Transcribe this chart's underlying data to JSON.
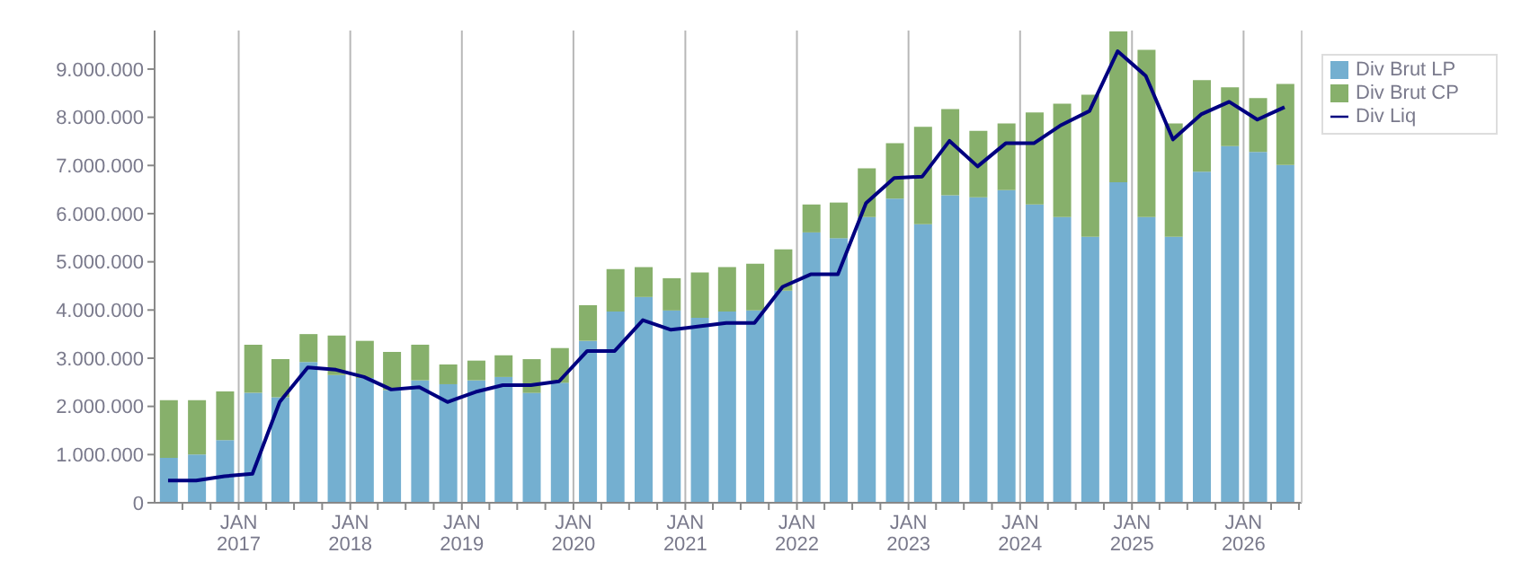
{
  "chart_data": {
    "type": "bar",
    "stacked": true,
    "x": [
      "2016-05-15",
      "2016-08-15",
      "2016-11-15",
      "2017-02-15",
      "2017-05-15",
      "2017-08-15",
      "2017-11-15",
      "2018-02-15",
      "2018-05-15",
      "2018-08-15",
      "2018-11-15",
      "2019-02-15",
      "2019-05-15",
      "2019-08-15",
      "2019-11-15",
      "2020-02-15",
      "2020-05-15",
      "2020-08-15",
      "2020-11-15",
      "2021-02-15",
      "2021-05-15",
      "2021-08-15",
      "2021-11-15",
      "2022-02-15",
      "2022-05-15",
      "2022-08-15",
      "2022-11-15",
      "2023-02-15",
      "2023-05-15",
      "2023-08-15",
      "2023-11-15",
      "2024-02-15",
      "2024-05-15",
      "2024-08-15",
      "2024-11-15",
      "2025-02-15",
      "2025-05-15",
      "2025-08-15",
      "2025-11-15",
      "2026-02-15",
      "2026-05-15"
    ],
    "series": [
      {
        "name": "Div Brut LP",
        "color": "#74afd0",
        "values": [
          930000,
          1000000,
          1300000,
          2280000,
          2190000,
          2920000,
          2650000,
          2590000,
          2340000,
          2540000,
          2460000,
          2540000,
          2610000,
          2280000,
          2490000,
          3360000,
          3970000,
          4270000,
          3990000,
          3840000,
          3970000,
          3990000,
          4400000,
          5610000,
          5490000,
          5930000,
          6310000,
          5780000,
          6380000,
          6340000,
          6490000,
          6190000,
          5930000,
          5520000,
          6650000,
          5930000,
          5520000,
          6870000,
          7400000,
          7280000,
          7010000
        ]
      },
      {
        "name": "Div Brut CP",
        "color": "#87b06b",
        "values": [
          1200000,
          1130000,
          1010000,
          1000000,
          790000,
          580000,
          820000,
          770000,
          790000,
          740000,
          410000,
          410000,
          450000,
          700000,
          720000,
          740000,
          880000,
          620000,
          670000,
          940000,
          920000,
          970000,
          860000,
          580000,
          740000,
          1010000,
          1150000,
          2020000,
          1790000,
          1380000,
          1380000,
          1910000,
          2350000,
          2950000,
          3130000,
          3470000,
          2350000,
          1900000,
          1220000,
          1120000,
          1680000
        ]
      },
      {
        "name": "Div Liq",
        "type": "line",
        "color": "#000080",
        "values": [
          460000,
          460000,
          550000,
          600000,
          2090000,
          2810000,
          2760000,
          2610000,
          2350000,
          2400000,
          2090000,
          2300000,
          2440000,
          2440000,
          2520000,
          3150000,
          3150000,
          3790000,
          3590000,
          3660000,
          3730000,
          3730000,
          4480000,
          4740000,
          4740000,
          6220000,
          6740000,
          6770000,
          7510000,
          6980000,
          7460000,
          7460000,
          7840000,
          8130000,
          9370000,
          8860000,
          7540000,
          8060000,
          8320000,
          7950000,
          8210000
        ]
      }
    ],
    "xlim": [
      "2016-04-01",
      "2026-07-10"
    ],
    "xticks": [
      {
        "value": "2016-07-01",
        "label": null
      },
      {
        "value": "2016-10-01",
        "label": null
      },
      {
        "value": "2017-01-01",
        "label": "JAN\n2017"
      },
      {
        "value": "2017-04-01",
        "label": null
      },
      {
        "value": "2017-07-01",
        "label": null
      },
      {
        "value": "2017-10-01",
        "label": null
      },
      {
        "value": "2018-01-01",
        "label": "JAN\n2018"
      },
      {
        "value": "2018-04-01",
        "label": null
      },
      {
        "value": "2018-07-01",
        "label": null
      },
      {
        "value": "2018-10-01",
        "label": null
      },
      {
        "value": "2019-01-01",
        "label": "JAN\n2019"
      },
      {
        "value": "2019-04-01",
        "label": null
      },
      {
        "value": "2019-07-01",
        "label": null
      },
      {
        "value": "2019-10-01",
        "label": null
      },
      {
        "value": "2020-01-01",
        "label": "JAN\n2020"
      },
      {
        "value": "2020-04-01",
        "label": null
      },
      {
        "value": "2020-07-01",
        "label": null
      },
      {
        "value": "2020-10-01",
        "label": null
      },
      {
        "value": "2021-01-01",
        "label": "JAN\n2021"
      },
      {
        "value": "2021-04-01",
        "label": null
      },
      {
        "value": "2021-07-01",
        "label": null
      },
      {
        "value": "2021-10-01",
        "label": null
      },
      {
        "value": "2022-01-01",
        "label": "JAN\n2022"
      },
      {
        "value": "2022-04-01",
        "label": null
      },
      {
        "value": "2022-07-01",
        "label": null
      },
      {
        "value": "2022-10-01",
        "label": null
      },
      {
        "value": "2023-01-01",
        "label": "JAN\n2023"
      },
      {
        "value": "2023-04-01",
        "label": null
      },
      {
        "value": "2023-07-01",
        "label": null
      },
      {
        "value": "2023-10-01",
        "label": null
      },
      {
        "value": "2024-01-01",
        "label": "JAN\n2024"
      },
      {
        "value": "2024-04-01",
        "label": null
      },
      {
        "value": "2024-07-01",
        "label": null
      },
      {
        "value": "2024-10-01",
        "label": null
      },
      {
        "value": "2025-01-01",
        "label": "JAN\n2025"
      },
      {
        "value": "2025-04-01",
        "label": null
      },
      {
        "value": "2025-07-01",
        "label": null
      },
      {
        "value": "2025-10-01",
        "label": null
      },
      {
        "value": "2026-01-01",
        "label": "JAN\n2026"
      },
      {
        "value": "2026-04-01",
        "label": null
      },
      {
        "value": "2026-07-01",
        "label": null
      }
    ],
    "ylim": [
      0,
      9800000
    ],
    "yticks": [
      0,
      {
        "value": 1000000,
        "label": "1.000.000"
      },
      {
        "value": 2000000,
        "label": "2.000.000"
      },
      {
        "value": 3000000,
        "label": "3.000.000"
      },
      {
        "value": 4000000,
        "label": "4.000.000"
      },
      {
        "value": 5000000,
        "label": "5.000.000"
      },
      {
        "value": 6000000,
        "label": "6.000.000"
      },
      {
        "value": 7000000,
        "label": "7.000.000"
      },
      {
        "value": 8000000,
        "label": "8.000.000"
      },
      {
        "value": 9000000,
        "label": "9.000.000"
      }
    ],
    "grid": true,
    "legend": "top right",
    "marker": "none",
    "line_style": "solid"
  }
}
